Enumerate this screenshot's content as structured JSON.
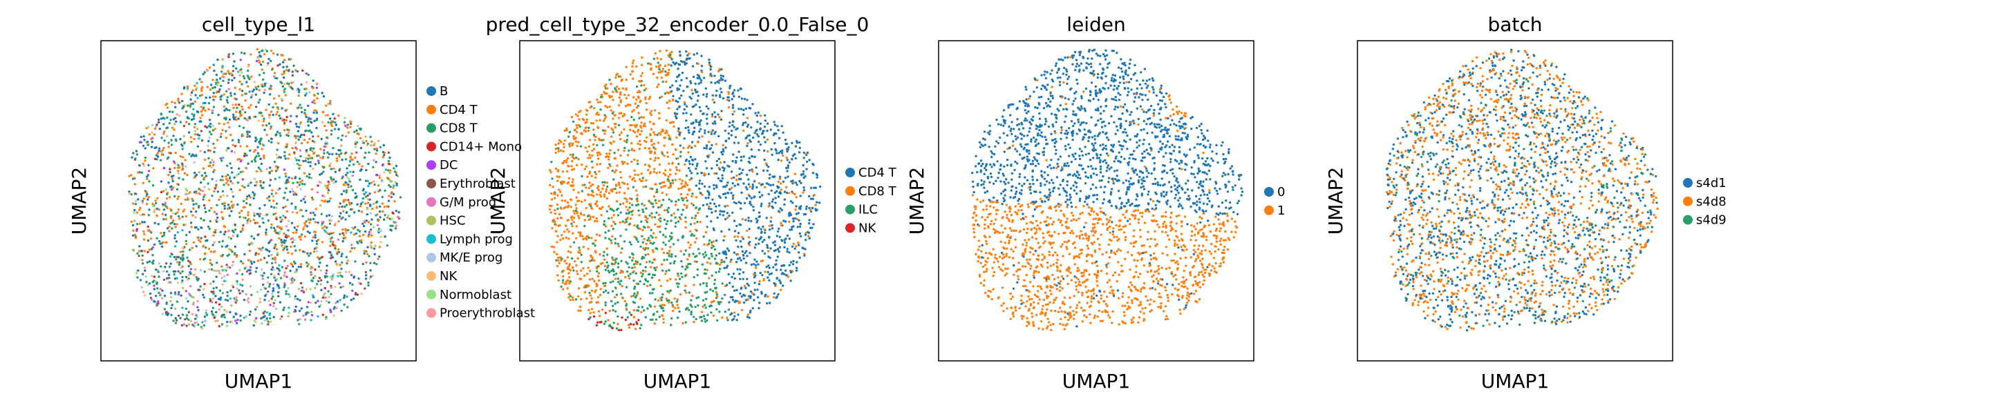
{
  "chart_data": [
    {
      "type": "scatter",
      "title": "cell_type_l1",
      "xlabel": "UMAP1",
      "ylabel": "UMAP2",
      "ticks": "none",
      "legend": "right-outside",
      "categories": [
        "B",
        "CD4 T",
        "CD8 T",
        "CD14+ Mono",
        "DC",
        "Erythroblast",
        "G/M prog",
        "HSC",
        "Lymph prog",
        "MK/E prog",
        "NK",
        "Normoblast",
        "Proerythroblast"
      ],
      "colors": [
        "#1f77b4",
        "#ff7f0e",
        "#279e68",
        "#d62728",
        "#aa40fc",
        "#8c564b",
        "#e377c2",
        "#b5bd61",
        "#17becf",
        "#aec7e8",
        "#ffbb78",
        "#98df8a",
        "#ff9896"
      ],
      "shape": "round-cloud"
    },
    {
      "type": "scatter",
      "title": "pred_cell_type_32_encoder_0.0_False_0",
      "xlabel": "UMAP1",
      "ylabel": "UMAP2",
      "ticks": "none",
      "legend": "right-outside",
      "categories": [
        "CD4 T",
        "CD8 T",
        "ILC",
        "NK"
      ],
      "colors": [
        "#1f77b4",
        "#ff7f0e",
        "#279e68",
        "#d62728"
      ],
      "shape": "round-cloud"
    },
    {
      "type": "scatter",
      "title": "leiden",
      "xlabel": "UMAP1",
      "ylabel": "UMAP2",
      "ticks": "none",
      "legend": "right-outside",
      "categories": [
        "0",
        "1"
      ],
      "colors": [
        "#1f77b4",
        "#ff7f0e"
      ],
      "shape": "round-cloud"
    },
    {
      "type": "scatter",
      "title": "batch",
      "xlabel": "UMAP1",
      "ylabel": "UMAP2",
      "ticks": "none",
      "legend": "right-outside",
      "categories": [
        "s4d1",
        "s4d8",
        "s4d9"
      ],
      "colors": [
        "#1f77b4",
        "#ff7f0e",
        "#279e68"
      ],
      "shape": "round-cloud"
    }
  ]
}
